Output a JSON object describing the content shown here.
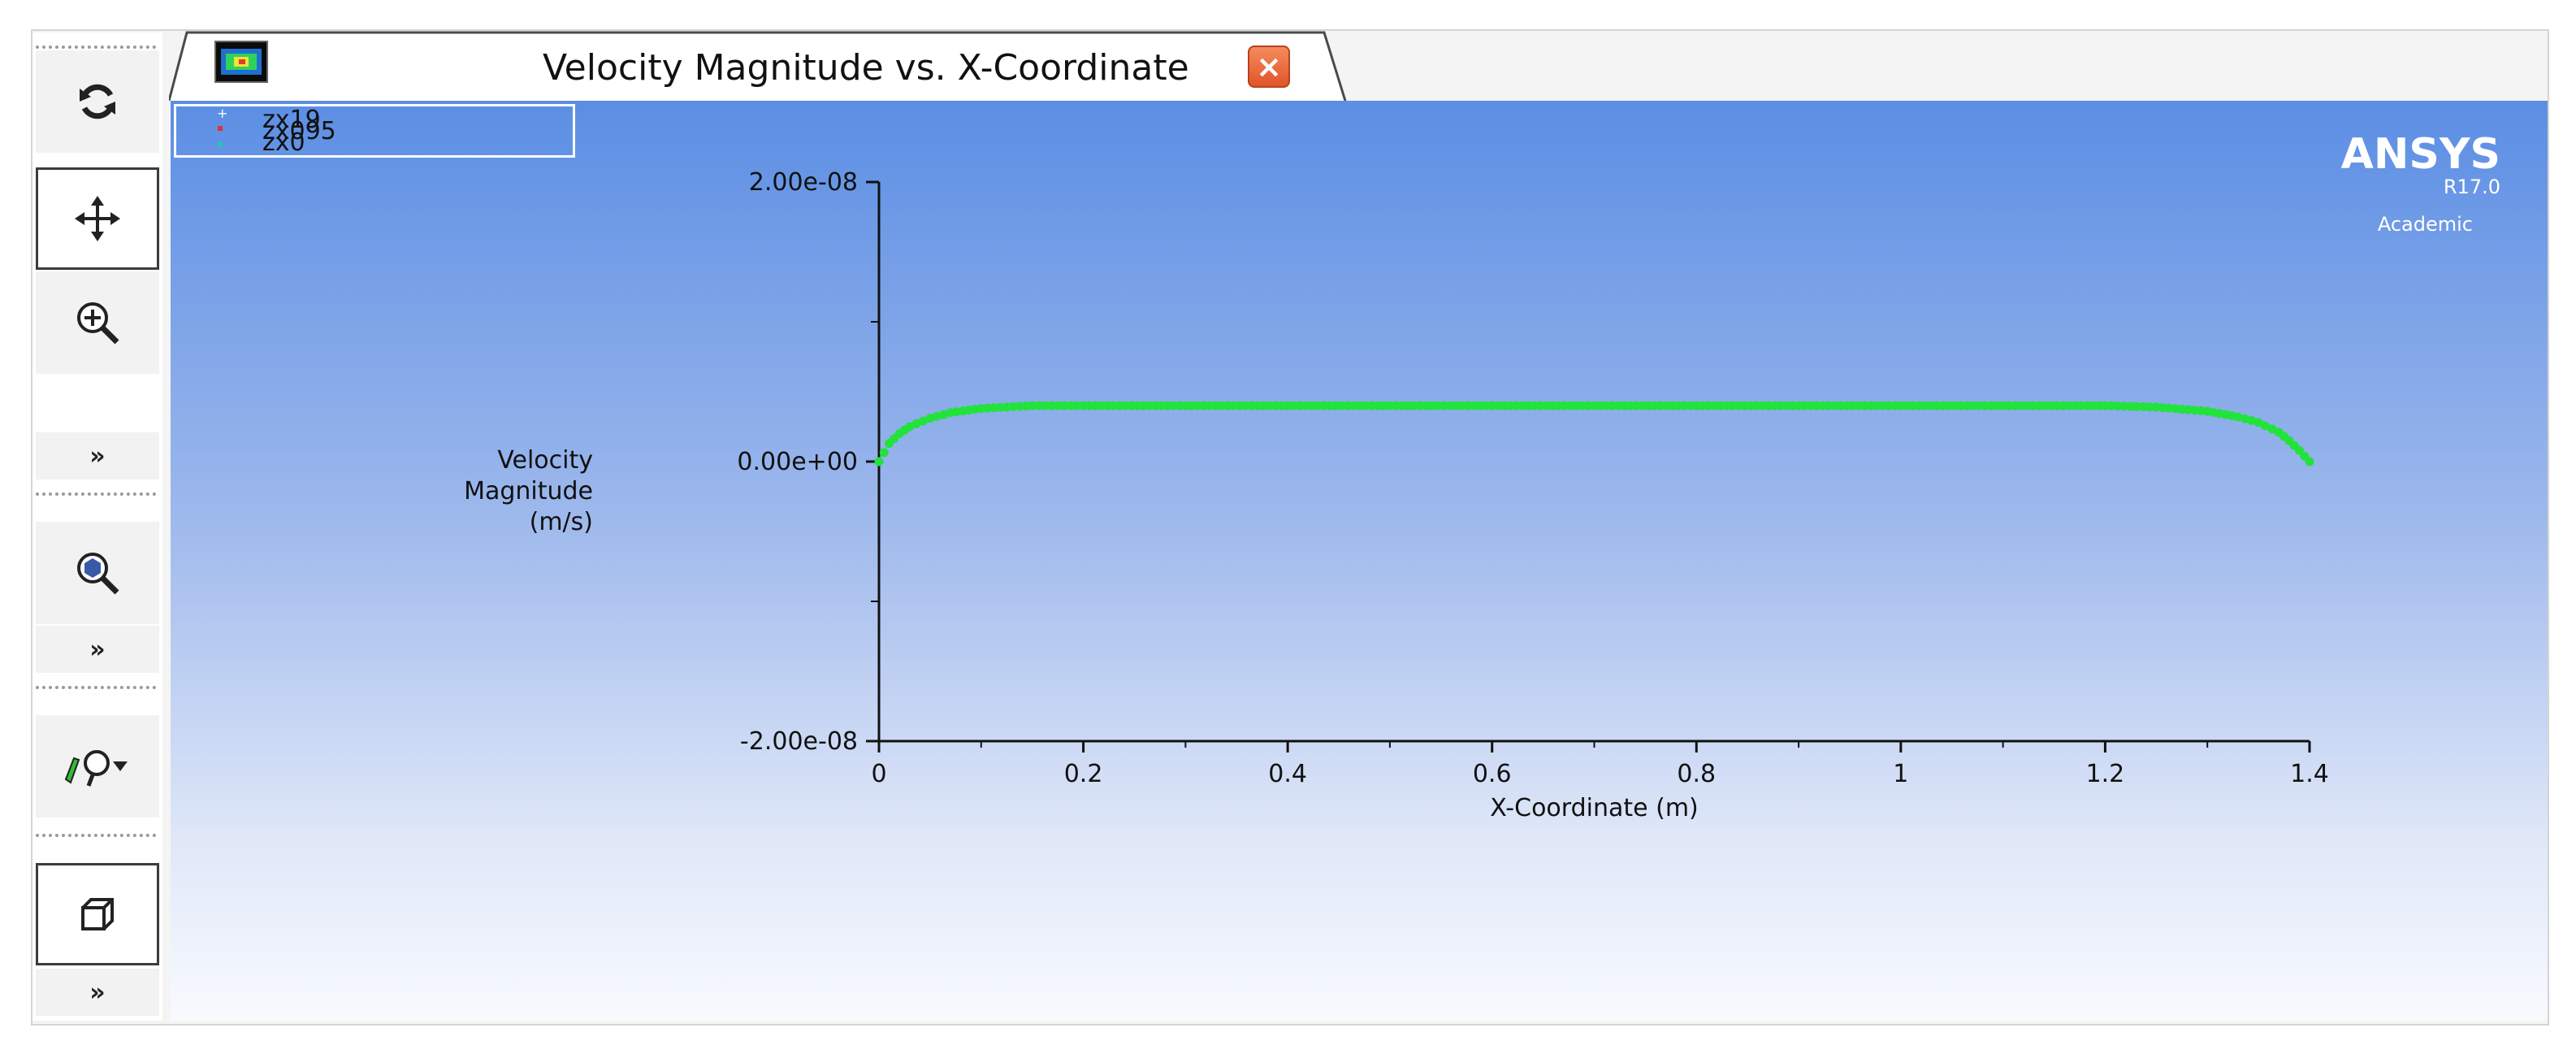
{
  "tab": {
    "title": "Velocity Magnitude vs. X-Coordinate",
    "close_glyph": "×",
    "icon": "contour-plot-icon"
  },
  "toolbar": {
    "tools": [
      {
        "name": "rotate-view-icon",
        "glyph": "↻"
      },
      {
        "name": "pan-icon",
        "glyph": "✥"
      },
      {
        "name": "zoom-in-icon",
        "glyph": "⊕"
      },
      {
        "name": "fit-to-window-icon",
        "glyph": "◉"
      },
      {
        "name": "probe-icon",
        "glyph": "⚲"
      },
      {
        "name": "isometric-view-icon",
        "glyph": "⬚"
      }
    ],
    "more_glyph": "»"
  },
  "logo": {
    "brand": "ANSYS",
    "version": "R17.0",
    "edition": "Academic"
  },
  "chart_data": {
    "type": "scatter",
    "title": "",
    "xlabel": "X-Coordinate (m)",
    "ylabel": [
      "Velocity",
      "Magnitude",
      "(m/s)"
    ],
    "xlim": [
      0,
      1.4
    ],
    "ylim": [
      -2e-08,
      2e-08
    ],
    "xticks": [
      "0",
      "0.2",
      "0.4",
      "0.6",
      "0.8",
      "1",
      "1.2",
      "1.4"
    ],
    "yticks": [
      "-2.00e-08",
      "0.00e+00",
      "2.00e-08"
    ],
    "legend": [
      "zx19",
      "zx095",
      "zx0"
    ],
    "series": [
      {
        "name": "zx0",
        "color": "#22e23c",
        "x": [
          0,
          0.01,
          0.02,
          0.03,
          0.05,
          0.07,
          0.1,
          0.15,
          0.2,
          0.3,
          0.4,
          0.5,
          0.6,
          0.7,
          0.8,
          0.9,
          1.0,
          1.1,
          1.2,
          1.25,
          1.3,
          1.33,
          1.35,
          1.37,
          1.38,
          1.39,
          1.4
        ],
        "y": [
          0,
          1.3e-09,
          2e-09,
          2.5e-09,
          3.1e-09,
          3.5e-09,
          3.8e-09,
          4e-09,
          4e-09,
          4e-09,
          4e-09,
          4e-09,
          4e-09,
          4e-09,
          4e-09,
          4e-09,
          4e-09,
          4e-09,
          4e-09,
          3.9e-09,
          3.6e-09,
          3.2e-09,
          2.8e-09,
          2.1e-09,
          1.5e-09,
          8e-10,
          0
        ]
      }
    ],
    "grid": false
  }
}
